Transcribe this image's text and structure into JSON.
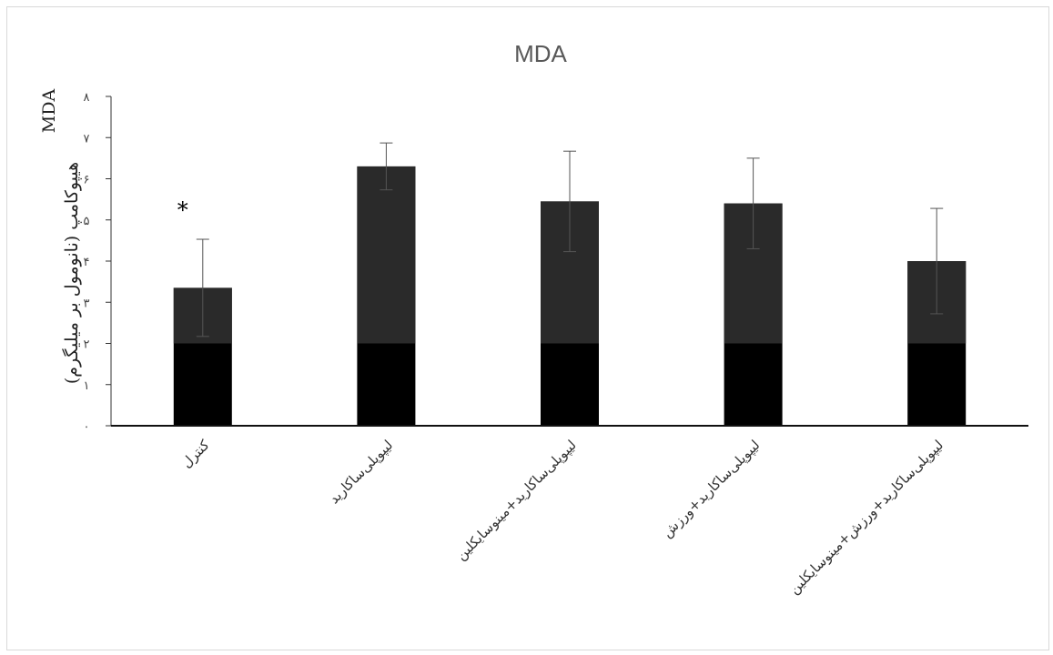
{
  "chart_data": {
    "type": "bar",
    "title": "MDA",
    "ylabel_line1": "MDA",
    "ylabel_line2": "هیپوکامپ (نانومول بر میلیگرم)",
    "ylim": [
      0,
      8
    ],
    "yticks": [
      "۰",
      "۱",
      "۲",
      "۳",
      "۴",
      "۵",
      "۶",
      "۷",
      "۸"
    ],
    "grid": false,
    "categories": [
      "کنترل",
      "لیپوپلی‌ساکارید",
      "لیپوپلی‌ساکارید+مینوسایکلین",
      "لیپوپلی‌ساکارید+ورزش",
      "لیپوپلی‌ساکارید+ورزش+مینوسایکلین"
    ],
    "values": [
      3.35,
      6.3,
      5.45,
      5.4,
      4.0
    ],
    "errors": [
      1.18,
      0.57,
      1.22,
      1.1,
      1.28
    ],
    "annotations": [
      {
        "category_index": 0,
        "text": "*"
      }
    ],
    "colors": {
      "bar": "#000000",
      "bar_upper": "#2a2a2a",
      "error": "#555555"
    }
  }
}
